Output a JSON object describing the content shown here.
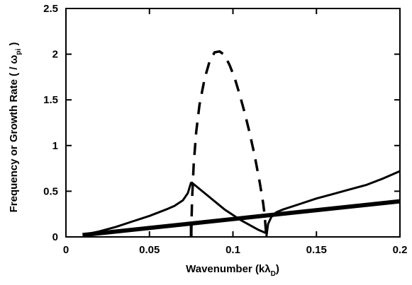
{
  "chart_data": {
    "type": "line",
    "title": "",
    "xlabel": "Wavenumber  (k",
    "xlabel_lambda": "λ",
    "xlabel_sub": "D",
    "xlabel_tail": ")",
    "ylabel": "Frequency  or  Growth  Rate  ( / ω",
    "ylabel_sub": "pi",
    "ylabel_tail": " )",
    "xlim": [
      0,
      0.2
    ],
    "ylim": [
      0,
      2.5
    ],
    "xticks": [
      0,
      0.05,
      0.1,
      0.15,
      0.2
    ],
    "xtick_labels": [
      "0",
      "0.05",
      "0.1",
      "0.15",
      "0.2"
    ],
    "yticks": [
      0,
      0.5,
      1,
      1.5,
      2,
      2.5
    ],
    "ytick_labels": [
      "0",
      "0.5",
      "1",
      "1.5",
      "2",
      "2.5"
    ],
    "grid": false,
    "legend": false,
    "series": [
      {
        "style": "solid-thin",
        "x": [
          0.01,
          0.02,
          0.03,
          0.04,
          0.05,
          0.06,
          0.065,
          0.07,
          0.073,
          0.075
        ],
        "y": [
          0.02,
          0.06,
          0.11,
          0.17,
          0.23,
          0.3,
          0.34,
          0.4,
          0.48,
          0.6
        ]
      },
      {
        "style": "solid-thin",
        "x": [
          0.075,
          0.085,
          0.095,
          0.105,
          0.115,
          0.12
        ],
        "y": [
          0.6,
          0.45,
          0.3,
          0.18,
          0.08,
          0.04
        ]
      },
      {
        "style": "solid-thin",
        "x": [
          0.12,
          0.121,
          0.123,
          0.126,
          0.13,
          0.14,
          0.15,
          0.16,
          0.17,
          0.18,
          0.19,
          0.2
        ],
        "y": [
          0.0,
          0.14,
          0.22,
          0.27,
          0.3,
          0.36,
          0.42,
          0.47,
          0.52,
          0.57,
          0.64,
          0.72
        ]
      },
      {
        "style": "solid-thick",
        "x": [
          0.01,
          0.2
        ],
        "y": [
          0.02,
          0.39
        ]
      },
      {
        "style": "dashed",
        "x": [
          0.075,
          0.0755,
          0.0765,
          0.078,
          0.08,
          0.083,
          0.086,
          0.089,
          0.092,
          0.095,
          0.098,
          0.101,
          0.104,
          0.107,
          0.11,
          0.113,
          0.116,
          0.118,
          0.119,
          0.1195,
          0.12
        ],
        "y": [
          0.0,
          0.4,
          0.8,
          1.15,
          1.45,
          1.73,
          1.92,
          2.02,
          2.03,
          1.99,
          1.88,
          1.74,
          1.56,
          1.36,
          1.14,
          0.89,
          0.6,
          0.38,
          0.24,
          0.12,
          0.0
        ]
      },
      {
        "style": "solid-thick-vertical",
        "x": [
          0.075,
          0.075
        ],
        "y": [
          0.0,
          0.16
        ]
      }
    ]
  }
}
